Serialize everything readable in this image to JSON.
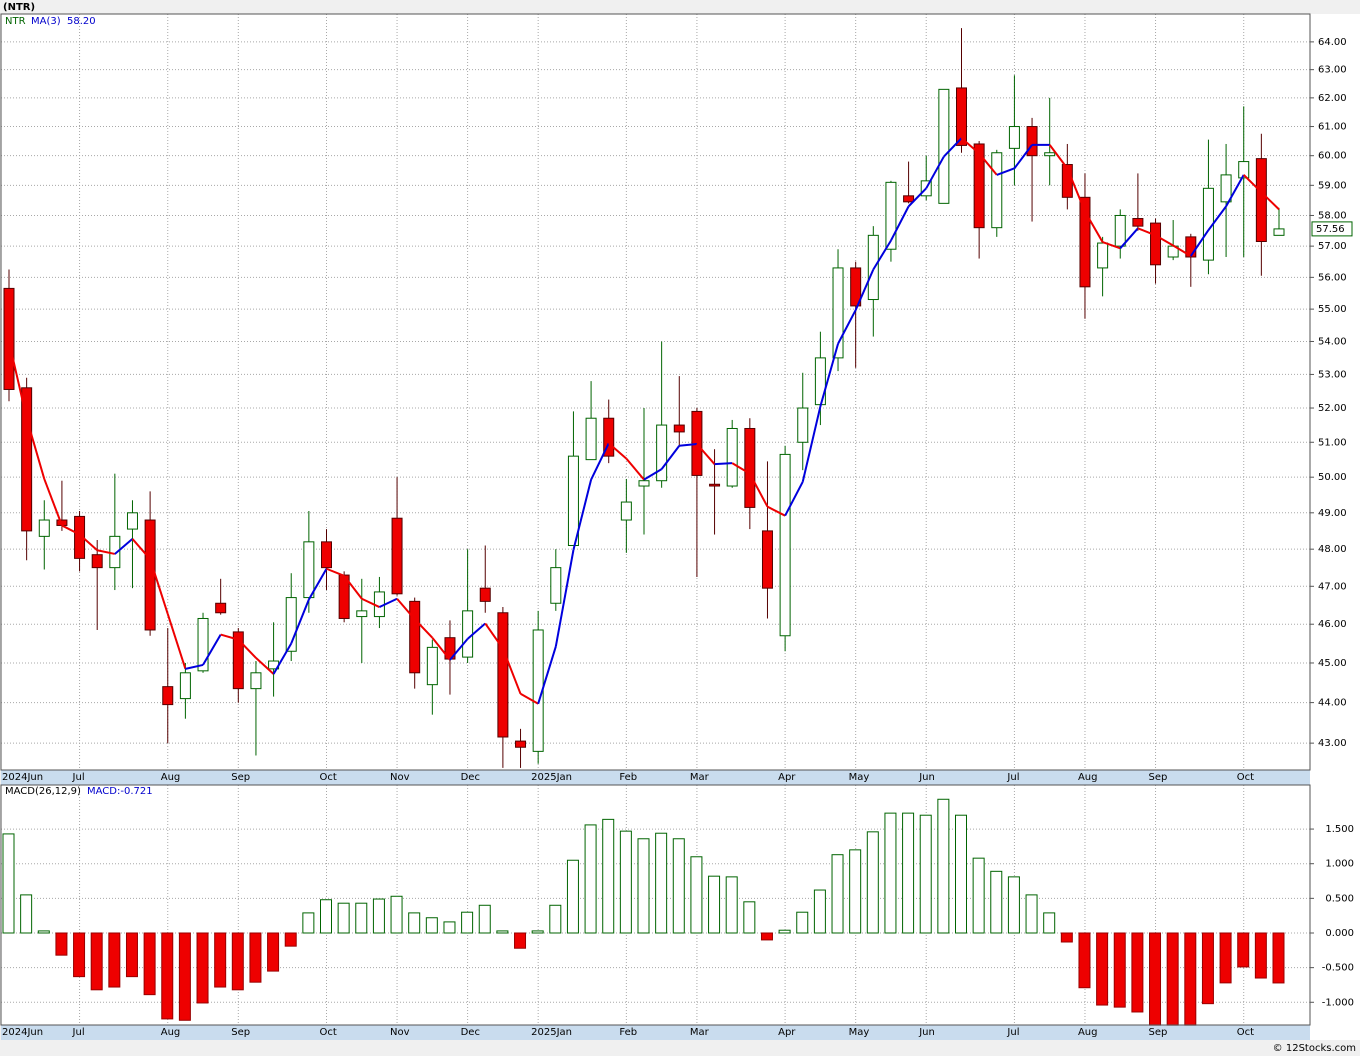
{
  "chart_data": {
    "type": "candlestick",
    "title": "(NTR)",
    "symbol": "NTR",
    "log_scale": true,
    "grid": true,
    "up_color": "#006400",
    "down_color": "#ee0000",
    "categories": [
      "2024Jun",
      null,
      null,
      null,
      "Jul",
      null,
      null,
      null,
      null,
      "Aug",
      null,
      null,
      null,
      "Sep",
      null,
      null,
      null,
      null,
      "Oct",
      null,
      null,
      null,
      "Nov",
      null,
      null,
      null,
      "Dec",
      null,
      null,
      null,
      "2025Jan",
      null,
      null,
      null,
      null,
      "Feb",
      null,
      null,
      null,
      "Mar",
      null,
      null,
      null,
      null,
      "Apr",
      null,
      null,
      null,
      "May",
      null,
      null,
      null,
      "Jun",
      null,
      null,
      null,
      null,
      "Jul",
      null,
      null,
      null,
      "Aug",
      null,
      null,
      null,
      "Sep",
      null,
      null,
      null,
      null,
      "Oct",
      null,
      null
    ],
    "open": [
      55.65,
      52.6,
      48.35,
      48.8,
      48.9,
      47.85,
      47.5,
      48.55,
      48.8,
      44.4,
      44.1,
      44.8,
      46.55,
      45.8,
      44.35,
      44.85,
      45.3,
      46.7,
      48.2,
      47.3,
      46.2,
      46.2,
      48.85,
      46.6,
      44.45,
      45.65,
      45.15,
      46.95,
      46.3,
      43.05,
      42.8,
      46.55,
      48.1,
      50.5,
      51.7,
      48.8,
      49.75,
      49.9,
      51.5,
      51.9,
      49.8,
      49.75,
      51.4,
      48.5,
      45.7,
      51.0,
      52.1,
      53.5,
      56.3,
      55.3,
      56.9,
      58.65,
      58.65,
      58.4,
      62.35,
      60.4,
      57.6,
      60.25,
      61.0,
      60.0,
      59.7,
      58.6,
      56.3,
      57.0,
      57.9,
      57.75,
      56.65,
      57.3,
      56.55,
      58.45,
      59.25,
      59.9,
      57.35
    ],
    "high": [
      56.25,
      52.9,
      49.35,
      49.9,
      49.05,
      48.25,
      50.1,
      49.35,
      49.6,
      45.9,
      45.0,
      46.3,
      47.2,
      45.9,
      45.05,
      46.05,
      47.35,
      49.05,
      48.55,
      47.4,
      47.2,
      47.25,
      50.0,
      46.7,
      45.6,
      46.1,
      48.0,
      48.1,
      46.45,
      43.35,
      46.35,
      48.0,
      51.9,
      52.8,
      52.25,
      49.95,
      52.0,
      54.0,
      52.95,
      52.0,
      50.8,
      51.65,
      51.7,
      50.45,
      50.9,
      53.05,
      54.3,
      56.9,
      56.5,
      57.65,
      59.15,
      59.8,
      60.0,
      62.3,
      64.5,
      60.5,
      60.2,
      62.8,
      61.3,
      62.0,
      60.4,
      59.4,
      57.3,
      58.2,
      59.4,
      57.9,
      57.85,
      57.4,
      60.55,
      60.4,
      61.7,
      60.75,
      58.25
    ],
    "low": [
      52.2,
      47.7,
      47.45,
      48.5,
      47.4,
      45.85,
      46.9,
      46.95,
      45.7,
      43.0,
      43.6,
      44.75,
      46.25,
      44.0,
      42.7,
      44.15,
      45.05,
      46.3,
      46.9,
      46.05,
      45.0,
      45.9,
      46.75,
      44.35,
      43.7,
      44.2,
      45.0,
      46.3,
      42.4,
      42.4,
      42.5,
      46.35,
      48.1,
      50.6,
      50.4,
      47.9,
      48.4,
      49.7,
      50.9,
      47.25,
      48.4,
      49.7,
      48.55,
      46.15,
      45.3,
      50.2,
      51.5,
      53.1,
      53.2,
      54.15,
      56.5,
      58.4,
      58.5,
      58.4,
      60.1,
      56.6,
      57.3,
      59.0,
      57.8,
      59.0,
      58.2,
      54.7,
      55.4,
      56.6,
      57.5,
      55.8,
      56.55,
      55.7,
      56.1,
      56.65,
      56.65,
      56.05,
      57.35
    ],
    "close": [
      52.55,
      48.5,
      48.8,
      48.65,
      47.75,
      47.5,
      48.35,
      49.0,
      45.85,
      43.95,
      44.75,
      46.15,
      46.3,
      44.35,
      44.75,
      45.05,
      46.7,
      48.2,
      47.5,
      46.15,
      46.35,
      46.85,
      46.8,
      44.75,
      45.4,
      45.1,
      46.35,
      46.6,
      43.15,
      42.9,
      45.85,
      47.5,
      50.6,
      51.7,
      50.6,
      49.3,
      49.9,
      51.5,
      51.3,
      50.05,
      49.75,
      51.4,
      49.15,
      46.95,
      50.65,
      52.0,
      53.5,
      56.3,
      55.1,
      57.35,
      59.1,
      58.45,
      59.15,
      62.3,
      60.35,
      57.6,
      60.1,
      61.0,
      60.0,
      60.1,
      58.6,
      55.7,
      57.1,
      58.0,
      57.65,
      56.4,
      57.0,
      56.65,
      58.9,
      59.35,
      59.8,
      57.15,
      57.56
    ],
    "last_price_label": "57.56",
    "ylim": [
      42.35,
      65.02
    ],
    "yticks": [
      {
        "value": 64,
        "label": "64.00"
      },
      {
        "value": 63,
        "label": "63.00"
      },
      {
        "value": 62,
        "label": "62.00"
      },
      {
        "value": 61,
        "label": "61.00"
      },
      {
        "value": 60,
        "label": "60.00"
      },
      {
        "value": 59,
        "label": "59.00"
      },
      {
        "value": 58,
        "label": "58.00"
      },
      {
        "value": 57,
        "label": "57.00"
      },
      {
        "value": 56,
        "label": "56.00"
      },
      {
        "value": 55,
        "label": "55.00"
      },
      {
        "value": 54,
        "label": "54.00"
      },
      {
        "value": 53,
        "label": "53.00"
      },
      {
        "value": 52,
        "label": "52.00"
      },
      {
        "value": 51,
        "label": "51.00"
      },
      {
        "value": 50,
        "label": "50.00"
      },
      {
        "value": 49,
        "label": "49.00"
      },
      {
        "value": 48,
        "label": "48.00"
      },
      {
        "value": 47,
        "label": "47.00"
      },
      {
        "value": 46,
        "label": "46.00"
      },
      {
        "value": 45,
        "label": "45.00"
      },
      {
        "value": 44,
        "label": "44.00"
      },
      {
        "value": 43,
        "label": "43.00"
      }
    ],
    "ma": {
      "name": "MA(3)",
      "value_label": "58.20",
      "up_color": "#0000dd",
      "down_color": "#ee0000",
      "values": [
        54.0,
        51.7,
        49.95,
        48.65,
        48.4,
        47.97,
        47.87,
        48.28,
        47.73,
        46.27,
        44.85,
        44.95,
        45.73,
        45.6,
        45.13,
        44.72,
        45.5,
        46.65,
        47.47,
        47.28,
        46.67,
        46.45,
        46.67,
        46.13,
        45.65,
        45.08,
        45.62,
        46.02,
        45.37,
        44.22,
        43.97,
        45.42,
        47.98,
        49.93,
        50.97,
        50.53,
        49.93,
        50.23,
        50.9,
        50.95,
        50.37,
        50.4,
        50.1,
        49.17,
        48.92,
        49.87,
        52.05,
        53.93,
        54.97,
        56.25,
        57.18,
        58.3,
        58.9,
        59.97,
        60.6,
        60.08,
        59.35,
        59.57,
        60.37,
        60.37,
        59.57,
        58.13,
        57.13,
        56.93,
        57.58,
        57.35,
        57.02,
        56.68,
        57.52,
        58.3,
        59.35,
        58.77,
        58.2
      ]
    },
    "macd": {
      "type": "bar",
      "name": "MACD(26,12,9)",
      "current_label": "MACD:-0.721",
      "pos_color": "#006400",
      "neg_color": "#ee0000",
      "values": [
        1.43,
        0.55,
        0.03,
        -0.32,
        -0.63,
        -0.82,
        -0.78,
        -0.63,
        -0.89,
        -1.24,
        -1.26,
        -1.01,
        -0.78,
        -0.82,
        -0.71,
        -0.55,
        -0.19,
        0.29,
        0.48,
        0.43,
        0.43,
        0.49,
        0.53,
        0.29,
        0.22,
        0.16,
        0.3,
        0.4,
        0.03,
        -0.22,
        0.03,
        0.4,
        1.05,
        1.56,
        1.64,
        1.47,
        1.36,
        1.44,
        1.36,
        1.1,
        0.82,
        0.81,
        0.45,
        -0.1,
        0.04,
        0.3,
        0.62,
        1.13,
        1.2,
        1.46,
        1.73,
        1.73,
        1.7,
        1.93,
        1.7,
        1.08,
        0.89,
        0.81,
        0.55,
        0.29,
        -0.13,
        -0.79,
        -1.04,
        -1.07,
        -1.14,
        -1.33,
        -1.33,
        -1.33,
        -1.02,
        -0.72,
        -0.49,
        -0.65,
        -0.721
      ],
      "ylim": [
        -1.328,
        2.136
      ],
      "yticks": [
        {
          "value": 1.5,
          "label": "1.500"
        },
        {
          "value": 1,
          "label": "1.000"
        },
        {
          "value": 0.5,
          "label": "0.500"
        },
        {
          "value": 0,
          "label": "0.000"
        },
        {
          "value": -0.5,
          "label": "-0.500"
        },
        {
          "value": -1,
          "label": "-1.000"
        }
      ]
    },
    "credit": "© 12Stocks.com"
  }
}
